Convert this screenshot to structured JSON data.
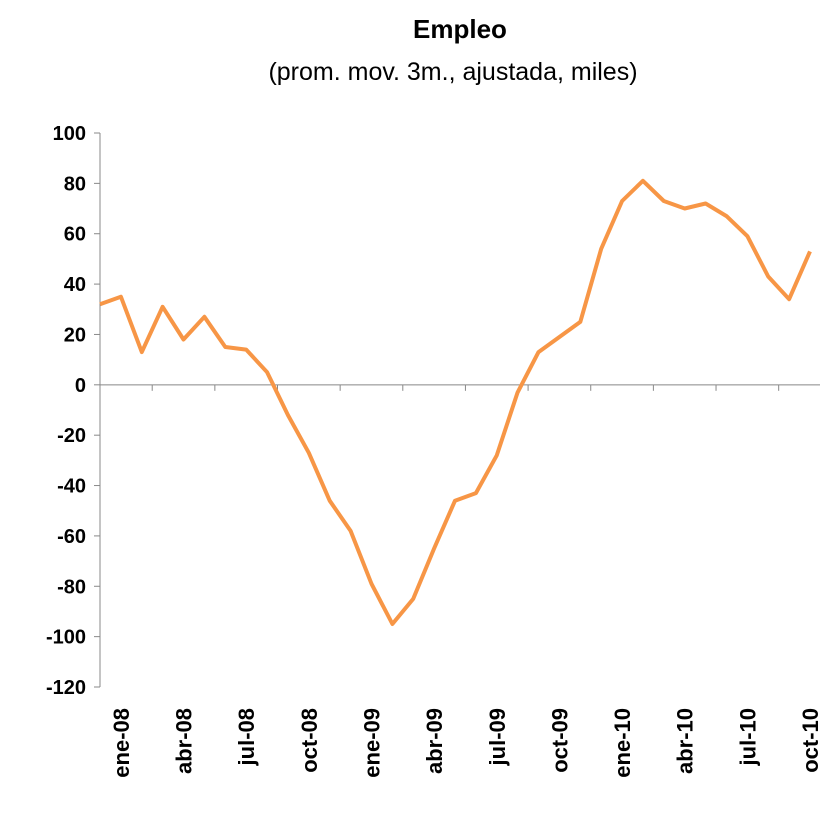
{
  "chart_data": {
    "type": "line",
    "title": "Empleo",
    "subtitle": "(prom. mov. 3m., ajustada, miles)",
    "categories": [
      null,
      "ene-08",
      null,
      null,
      "abr-08",
      null,
      null,
      "jul-08",
      null,
      null,
      "oct-08",
      null,
      null,
      "ene-09",
      null,
      null,
      "abr-09",
      null,
      null,
      "jul-09",
      null,
      null,
      "oct-09",
      null,
      null,
      "ene-10",
      null,
      null,
      "abr-10",
      null,
      null,
      "jul-10",
      null,
      null,
      "oct-10"
    ],
    "series": [
      {
        "name": "Empleo",
        "color": "#f79646",
        "values": [
          32,
          35,
          13,
          31,
          18,
          27,
          15,
          14,
          5,
          -12,
          -27,
          -46,
          -58,
          -79,
          -95,
          -85,
          -65,
          -46,
          -43,
          -28,
          -3,
          13,
          19,
          25,
          54,
          73,
          81,
          73,
          70,
          72,
          67,
          59,
          43,
          34,
          53
        ]
      }
    ],
    "ylim": [
      -120,
      100
    ],
    "yticks": [
      -120,
      -100,
      -80,
      -60,
      -40,
      -20,
      0,
      20,
      40,
      60,
      80,
      100
    ]
  }
}
